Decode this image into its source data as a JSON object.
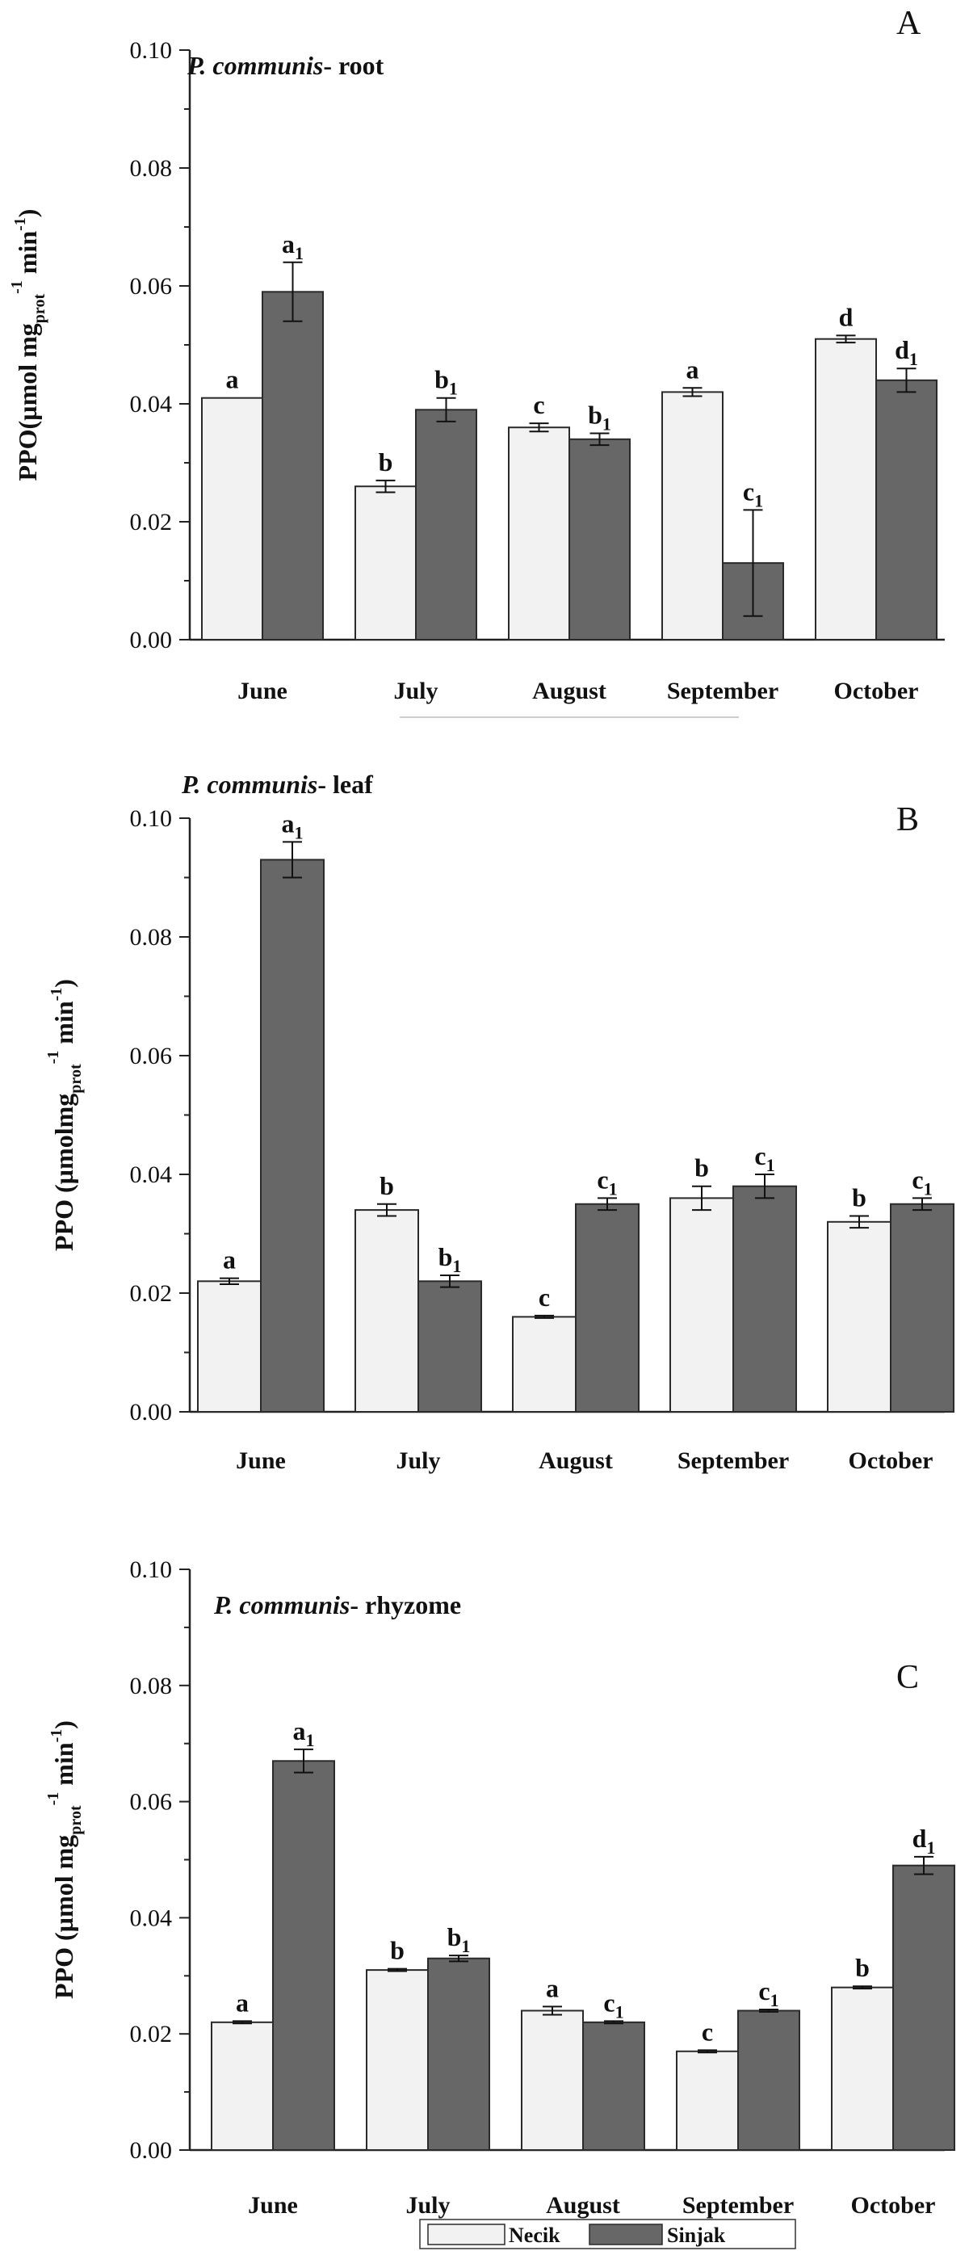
{
  "colors": {
    "necik": "#f2f2f2",
    "sinjak": "#676767",
    "stroke": "#2a2a2a"
  },
  "legend": {
    "series_1": "Necik",
    "series_2": "Sinjak"
  },
  "chart_data": [
    {
      "type": "bar",
      "panel": "A",
      "title_species": "P. communis",
      "title_organ": "- root",
      "ylabel_text": "PPO(µmol mg",
      "ylabel_sub": "prot",
      "ylabel_sup": "-1",
      "ylabel_tail": " min",
      "ylabel_end": ")",
      "ylim": [
        0,
        0.1
      ],
      "yticks": [
        "0.00",
        "0.02",
        "0.04",
        "0.06",
        "0.08",
        "0.10"
      ],
      "categories": [
        "June",
        "July",
        "August",
        "September",
        "October"
      ],
      "series": [
        {
          "name": "Necik",
          "values": [
            0.041,
            0.026,
            0.036,
            0.042,
            0.051
          ],
          "errors": [
            0.0,
            0.001,
            0.0007,
            0.0007,
            0.0006
          ],
          "labels": [
            "a",
            "b",
            "c",
            "a",
            "d"
          ],
          "label_subs": [
            "",
            "",
            "",
            "",
            ""
          ]
        },
        {
          "name": "Sinjak",
          "values": [
            0.059,
            0.039,
            0.034,
            0.013,
            0.044
          ],
          "errors": [
            0.005,
            0.002,
            0.001,
            0.009,
            0.002
          ],
          "labels": [
            "a",
            "b",
            "b",
            "c",
            "d"
          ],
          "label_subs": [
            "1",
            "1",
            "1",
            "1",
            "1"
          ]
        }
      ]
    },
    {
      "type": "bar",
      "panel": "B",
      "title_species": "P. communis",
      "title_organ": "- leaf",
      "ylabel_text": "PPO (µmolmg",
      "ylabel_sub": "prot",
      "ylabel_sup": "-1",
      "ylabel_tail": " min",
      "ylabel_end": ")",
      "ylim": [
        0,
        0.1
      ],
      "yticks": [
        "0.00",
        "0.02",
        "0.04",
        "0.06",
        "0.08",
        "0.10"
      ],
      "categories": [
        "June",
        "July",
        "August",
        "September",
        "October"
      ],
      "series": [
        {
          "name": "Necik",
          "values": [
            0.022,
            0.034,
            0.016,
            0.036,
            0.032
          ],
          "errors": [
            0.0005,
            0.001,
            0.0002,
            0.002,
            0.001
          ],
          "labels": [
            "a",
            "b",
            "c",
            "b",
            "b"
          ],
          "label_subs": [
            "",
            "",
            "",
            "",
            ""
          ]
        },
        {
          "name": "Sinjak",
          "values": [
            0.093,
            0.022,
            0.035,
            0.038,
            0.035
          ],
          "errors": [
            0.003,
            0.001,
            0.001,
            0.002,
            0.001
          ],
          "labels": [
            "a",
            "b",
            "c",
            "c",
            "c"
          ],
          "label_subs": [
            "1",
            "1",
            "1",
            "1",
            "1"
          ]
        }
      ]
    },
    {
      "type": "bar",
      "panel": "C",
      "title_species": "P. communis",
      "title_organ": "- rhyzome",
      "ylabel_text": "PPO (µmol mg",
      "ylabel_sub": "prot",
      "ylabel_sup": "-1",
      "ylabel_tail": " min",
      "ylabel_end": ")",
      "ylim": [
        0,
        0.1
      ],
      "yticks": [
        "0.00",
        "0.02",
        "0.04",
        "0.06",
        "0.08",
        "0.10"
      ],
      "categories": [
        "June",
        "July",
        "August",
        "September",
        "October"
      ],
      "series": [
        {
          "name": "Necik",
          "values": [
            0.022,
            0.031,
            0.024,
            0.017,
            0.028
          ],
          "errors": [
            0.0002,
            0.0002,
            0.0007,
            0.0002,
            0.0002
          ],
          "labels": [
            "a",
            "b",
            "a",
            "c",
            "b"
          ],
          "label_subs": [
            "",
            "",
            "",
            "",
            ""
          ]
        },
        {
          "name": "Sinjak",
          "values": [
            0.067,
            0.033,
            0.022,
            0.024,
            0.049
          ],
          "errors": [
            0.002,
            0.0005,
            0.0002,
            0.0002,
            0.0015
          ],
          "labels": [
            "a",
            "b",
            "c",
            "c",
            "d"
          ],
          "label_subs": [
            "1",
            "1",
            "1",
            "1",
            "1"
          ]
        }
      ]
    }
  ]
}
